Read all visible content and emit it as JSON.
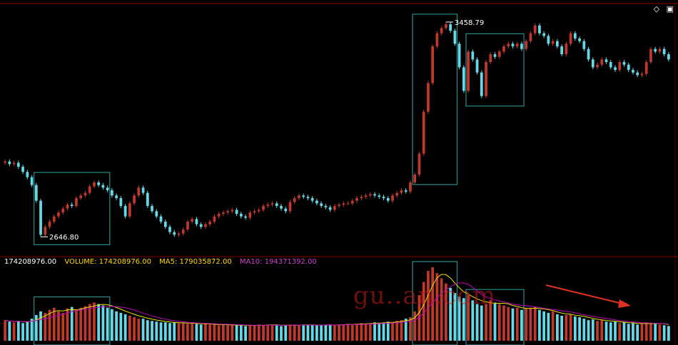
{
  "colors": {
    "background": "#000000",
    "up": "#c0392b",
    "down": "#66d9e8",
    "box": "#2a8c8c",
    "divider": "#8b0000",
    "volume_label": "#ffd700",
    "ma5": "#e6e600",
    "ma10": "#c000c0",
    "arrow": "#e03020"
  },
  "icons": {
    "settings": "diamond-icon",
    "window": "window-icon"
  },
  "legend": {
    "value_label": "174208976.00",
    "volume_label": "VOLUME: 174208976.00",
    "ma5_label": "MA5: 179035872.00",
    "ma10_label": "MA10: 194371392.00"
  },
  "watermark": "gu..an.com",
  "chart_data": {
    "type": "candlestick",
    "annotations": {
      "high_label": "3458.79",
      "low_label": "2646.80"
    },
    "price_range": [
      2580,
      3520
    ],
    "closes": [
      2930,
      2920,
      2925,
      2910,
      2890,
      2870,
      2840,
      2780,
      2650,
      2680,
      2700,
      2720,
      2735,
      2750,
      2765,
      2760,
      2790,
      2800,
      2810,
      2835,
      2850,
      2840,
      2830,
      2820,
      2800,
      2790,
      2760,
      2720,
      2770,
      2800,
      2830,
      2810,
      2760,
      2740,
      2720,
      2700,
      2680,
      2660,
      2650,
      2655,
      2670,
      2700,
      2710,
      2690,
      2680,
      2690,
      2700,
      2720,
      2730,
      2735,
      2740,
      2745,
      2730,
      2720,
      2715,
      2735,
      2740,
      2745,
      2760,
      2765,
      2770,
      2760,
      2750,
      2740,
      2775,
      2790,
      2800,
      2795,
      2790,
      2780,
      2770,
      2760,
      2755,
      2745,
      2760,
      2765,
      2770,
      2770,
      2780,
      2790,
      2795,
      2800,
      2805,
      2800,
      2795,
      2790,
      2780,
      2800,
      2810,
      2820,
      2815,
      2850,
      2880,
      2960,
      3120,
      3230,
      3370,
      3420,
      3440,
      3455,
      3430,
      3380,
      3290,
      3200,
      3350,
      3320,
      3270,
      3180,
      3310,
      3340,
      3330,
      3350,
      3370,
      3380,
      3370,
      3380,
      3360,
      3390,
      3420,
      3450,
      3420,
      3410,
      3380,
      3390,
      3370,
      3340,
      3380,
      3420,
      3400,
      3390,
      3360,
      3320,
      3290,
      3300,
      3320,
      3310,
      3290,
      3280,
      3310,
      3300,
      3280,
      3270,
      3260,
      3265,
      3310,
      3360,
      3350,
      3360,
      3340,
      3320
    ],
    "volumes": [
      0.28,
      0.26,
      0.25,
      0.27,
      0.24,
      0.26,
      0.3,
      0.35,
      0.4,
      0.38,
      0.42,
      0.45,
      0.4,
      0.38,
      0.44,
      0.46,
      0.42,
      0.45,
      0.47,
      0.5,
      0.52,
      0.5,
      0.48,
      0.45,
      0.43,
      0.4,
      0.38,
      0.36,
      0.34,
      0.32,
      0.3,
      0.3,
      0.28,
      0.27,
      0.26,
      0.25,
      0.25,
      0.24,
      0.25,
      0.24,
      0.24,
      0.23,
      0.24,
      0.23,
      0.22,
      0.23,
      0.22,
      0.22,
      0.21,
      0.22,
      0.21,
      0.22,
      0.21,
      0.21,
      0.2,
      0.21,
      0.21,
      0.22,
      0.21,
      0.22,
      0.22,
      0.21,
      0.2,
      0.21,
      0.22,
      0.22,
      0.21,
      0.22,
      0.21,
      0.22,
      0.21,
      0.21,
      0.22,
      0.22,
      0.21,
      0.22,
      0.22,
      0.23,
      0.22,
      0.23,
      0.24,
      0.23,
      0.24,
      0.25,
      0.24,
      0.25,
      0.26,
      0.25,
      0.27,
      0.28,
      0.3,
      0.32,
      0.4,
      0.62,
      0.8,
      0.95,
      1.0,
      0.92,
      0.85,
      0.78,
      0.72,
      0.65,
      0.6,
      0.58,
      0.62,
      0.55,
      0.5,
      0.48,
      0.5,
      0.55,
      0.52,
      0.5,
      0.48,
      0.46,
      0.44,
      0.45,
      0.42,
      0.44,
      0.45,
      0.46,
      0.42,
      0.4,
      0.38,
      0.4,
      0.36,
      0.34,
      0.35,
      0.36,
      0.33,
      0.32,
      0.3,
      0.28,
      0.29,
      0.27,
      0.28,
      0.26,
      0.25,
      0.26,
      0.24,
      0.25,
      0.23,
      0.24,
      0.22,
      0.23,
      0.25,
      0.24,
      0.23,
      0.22,
      0.21,
      0.2
    ]
  }
}
